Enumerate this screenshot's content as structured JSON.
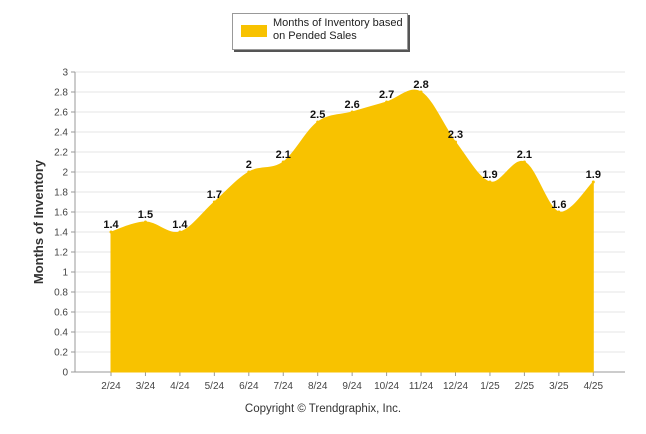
{
  "chart_data": {
    "type": "area",
    "title": "",
    "xlabel": "",
    "ylabel": "Months of Inventory",
    "ylim": [
      0,
      3
    ],
    "yticks": [
      "0",
      "0.2",
      "0.4",
      "0.6",
      "0.8",
      "1",
      "1.2",
      "1.4",
      "1.6",
      "1.8",
      "2",
      "2.2",
      "2.4",
      "2.6",
      "2.8",
      "3"
    ],
    "categories": [
      "2/24",
      "3/24",
      "4/24",
      "5/24",
      "6/24",
      "7/24",
      "8/24",
      "9/24",
      "10/24",
      "11/24",
      "12/24",
      "1/25",
      "2/25",
      "3/25",
      "4/25"
    ],
    "series": [
      {
        "name": "Months of Inventory based on Pended Sales",
        "color": "#F8C200",
        "values": [
          1.4,
          1.5,
          1.4,
          1.7,
          2,
          2.1,
          2.5,
          2.6,
          2.7,
          2.8,
          2.3,
          1.9,
          2.1,
          1.6,
          1.9
        ],
        "labels": [
          "1.4",
          "1.5",
          "1.4",
          "1.7",
          "2",
          "2.1",
          "2.5",
          "2.6",
          "2.7",
          "2.8",
          "2.3",
          "1.9",
          "2.1",
          "1.6",
          "1.9"
        ]
      }
    ],
    "grid": true,
    "legend": "top-center"
  },
  "legend": {
    "label": "Months of Inventory based on Pended Sales",
    "color": "#F8C200"
  },
  "footer": {
    "copyright": "Copyright © Trendgraphix, Inc."
  }
}
